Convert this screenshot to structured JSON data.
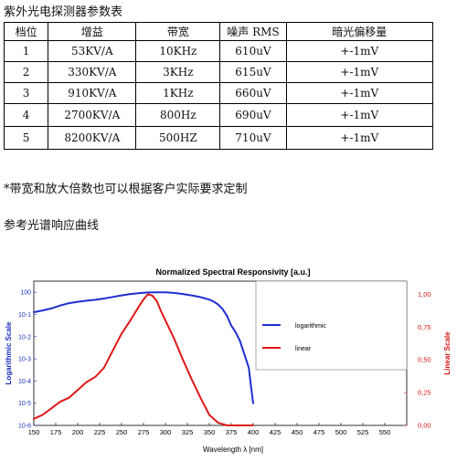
{
  "document": {
    "title": "紫外光电探测器参数表",
    "note": "*带宽和放大倍数也可以根据客户实际要求定制",
    "curve_heading": "参考光谱响应曲线"
  },
  "table": {
    "headers": [
      "档位",
      "增益",
      "带宽",
      "噪声 RMS",
      "暗光偏移量"
    ],
    "rows": [
      [
        "1",
        "53KV/A",
        "10KHz",
        "610uV",
        "+-1mV"
      ],
      [
        "2",
        "330KV/A",
        "3KHz",
        "615uV",
        "+-1mV"
      ],
      [
        "3",
        "910KV/A",
        "1KHz",
        "660uV",
        "+-1mV"
      ],
      [
        "4",
        "2700KV/A",
        "800Hz",
        "690uV",
        "+-1mV"
      ],
      [
        "5",
        "8200KV/A",
        "500HZ",
        "710uV",
        "+-1mV"
      ]
    ]
  },
  "colors": {
    "logarithmic": "#1f2fd0",
    "linear": "#e01818",
    "axis_left": "#1a2fbf",
    "axis_right": "#d81818"
  },
  "chart_data": {
    "type": "line",
    "title": "Normalized Spectral Responsivity [a.u.]",
    "xlabel": "Wavelength λ [nm]",
    "ylabel_left": "Logarithmic Scale",
    "ylabel_right": "Linear Scale",
    "xlim": [
      150,
      575
    ],
    "x_ticks": [
      150,
      175,
      200,
      225,
      250,
      275,
      300,
      325,
      350,
      375,
      400,
      425,
      450,
      475,
      500,
      525,
      550
    ],
    "ylim_left_log10": [
      -6,
      0.5
    ],
    "y_ticks_left": [
      "10-6",
      "10-5",
      "10-4",
      "10-3",
      "10-2",
      "10-1",
      "100"
    ],
    "ylim_right": [
      0,
      1.1
    ],
    "y_ticks_right": [
      "0,00",
      "0,25",
      "0,50",
      "0,75",
      "1,00"
    ],
    "legend_position": "top-right",
    "grid": false,
    "series": [
      {
        "name": "logarithmic",
        "axis": "left",
        "scale": "log10",
        "x": [
          150,
          160,
          170,
          180,
          190,
          200,
          210,
          220,
          230,
          240,
          250,
          260,
          270,
          280,
          290,
          300,
          310,
          320,
          330,
          340,
          350,
          355,
          360,
          365,
          370,
          375,
          380,
          385,
          390,
          395,
          398,
          400
        ],
        "log10_y": [
          -0.9,
          -0.82,
          -0.73,
          -0.6,
          -0.49,
          -0.43,
          -0.38,
          -0.34,
          -0.28,
          -0.21,
          -0.14,
          -0.08,
          -0.04,
          -0.01,
          0.0,
          0.0,
          -0.03,
          -0.08,
          -0.14,
          -0.22,
          -0.33,
          -0.42,
          -0.55,
          -0.75,
          -1.05,
          -1.5,
          -1.8,
          -2.2,
          -2.8,
          -3.4,
          -4.4,
          -5.0
        ]
      },
      {
        "name": "linear",
        "axis": "right",
        "scale": "linear",
        "x": [
          150,
          160,
          170,
          180,
          190,
          200,
          210,
          220,
          230,
          240,
          250,
          260,
          270,
          275,
          280,
          285,
          290,
          295,
          300,
          310,
          320,
          330,
          340,
          350,
          360,
          370,
          380,
          390,
          400
        ],
        "y": [
          0.05,
          0.08,
          0.13,
          0.18,
          0.21,
          0.27,
          0.33,
          0.37,
          0.44,
          0.57,
          0.7,
          0.8,
          0.91,
          0.96,
          1.0,
          0.99,
          0.95,
          0.87,
          0.8,
          0.66,
          0.5,
          0.35,
          0.21,
          0.08,
          0.02,
          0.0,
          0.0,
          0.0,
          0.0
        ]
      }
    ]
  }
}
